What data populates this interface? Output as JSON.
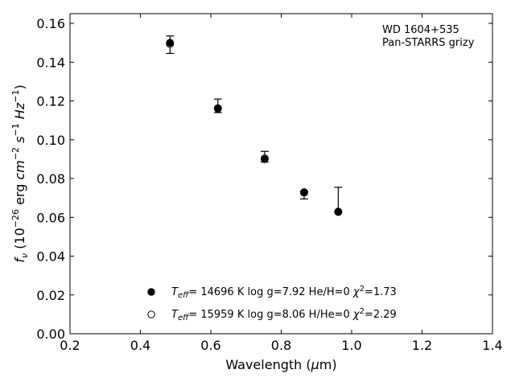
{
  "chart_data": {
    "type": "scatter",
    "title": "",
    "annotation": [
      "WD 1604+535",
      "Pan-STARRS grizy"
    ],
    "xlabel": "Wavelength (μm)",
    "ylabel": "fν (10⁻²⁶ erg cm⁻² s⁻¹ Hz⁻¹)",
    "xlim": [
      0.2,
      1.4
    ],
    "ylim": [
      0.0,
      0.165
    ],
    "xticks": [
      0.2,
      0.4,
      0.6,
      0.8,
      1.0,
      1.2,
      1.4
    ],
    "xtick_labels": [
      "0.2",
      "0.4",
      "0.6",
      "0.8",
      "1.0",
      "1.2",
      "1.4"
    ],
    "yticks": [
      0.0,
      0.02,
      0.04,
      0.06,
      0.08,
      0.1,
      0.12,
      0.14,
      0.16
    ],
    "ytick_labels": [
      "0.00",
      "0.02",
      "0.04",
      "0.06",
      "0.08",
      "0.10",
      "0.12",
      "0.14",
      "0.16"
    ],
    "grid": false,
    "legend_position": "bottom-center",
    "observed": {
      "x": [
        0.484,
        0.62,
        0.753,
        0.865,
        0.962
      ],
      "y": [
        0.149,
        0.117,
        0.091,
        0.0725,
        0.0627
      ],
      "yerr_low": [
        0.0045,
        0.003,
        0.0025,
        0.003,
        0.0
      ],
      "yerr_high": [
        0.0045,
        0.004,
        0.003,
        0.001,
        0.0128
      ]
    },
    "series": [
      {
        "name": "T_eff= 14696 K  log g=7.92  He/H=0  χ²=1.73",
        "marker": "filled",
        "x": [
          0.484,
          0.62,
          0.753,
          0.865,
          0.962
        ],
        "y": [
          0.15,
          0.116,
          0.09,
          0.073,
          0.063
        ]
      },
      {
        "name": "T_eff= 15959 K  log g=8.06  H/He=0  χ²=2.29",
        "marker": "open",
        "x": [
          0.484,
          0.62,
          0.753,
          0.865,
          0.962
        ],
        "y": [
          0.1495,
          0.1162,
          0.0903,
          0.0728,
          0.0628
        ]
      }
    ]
  }
}
